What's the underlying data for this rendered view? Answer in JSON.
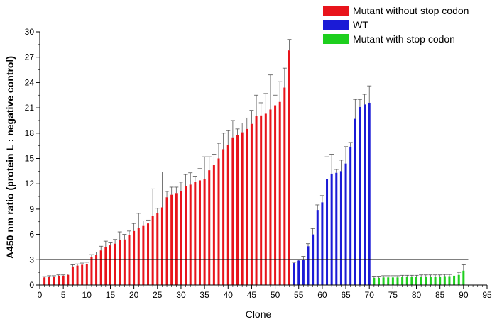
{
  "chart_data": {
    "type": "bar",
    "xlabel": "Clone",
    "ylabel": "A450 nm ratio (protein L : negative control)",
    "xlim": [
      0,
      95
    ],
    "ylim": [
      0,
      30
    ],
    "xticks": [
      0,
      5,
      10,
      15,
      20,
      25,
      30,
      35,
      40,
      45,
      50,
      55,
      60,
      65,
      70,
      75,
      80,
      85,
      90,
      95
    ],
    "yticks": [
      0,
      3,
      6,
      9,
      12,
      15,
      18,
      21,
      24,
      27,
      30
    ],
    "threshold": 3,
    "grid": false,
    "legend_position": "top-right",
    "series": [
      {
        "name": "Mutant without stop codon",
        "color": "#e8141b",
        "x": [
          1,
          2,
          3,
          4,
          5,
          6,
          7,
          8,
          9,
          10,
          11,
          12,
          13,
          14,
          15,
          16,
          17,
          18,
          19,
          20,
          21,
          22,
          23,
          24,
          25,
          26,
          27,
          28,
          29,
          30,
          31,
          32,
          33,
          34,
          35,
          36,
          37,
          38,
          39,
          40,
          41,
          42,
          43,
          44,
          45,
          46,
          47,
          48,
          49,
          50,
          51,
          52,
          53
        ],
        "values": [
          0.9,
          1.0,
          1.0,
          1.1,
          1.1,
          1.2,
          2.2,
          2.3,
          2.4,
          2.5,
          3.3,
          3.6,
          4.1,
          4.5,
          4.7,
          4.9,
          5.3,
          5.4,
          5.9,
          6.4,
          6.8,
          7.0,
          7.3,
          8.2,
          8.5,
          9.2,
          10.4,
          10.7,
          10.9,
          11.1,
          11.7,
          11.9,
          12.2,
          12.4,
          12.6,
          13.6,
          14.2,
          15.0,
          16.1,
          16.6,
          17.5,
          17.8,
          18.1,
          18.5,
          19.1,
          20.0,
          20.1,
          20.3,
          20.8,
          21.3,
          21.7,
          23.4,
          27.8
        ],
        "errors": [
          0.1,
          0.1,
          0.1,
          0.1,
          0.1,
          0.1,
          0.2,
          0.2,
          0.2,
          0.2,
          0.3,
          0.3,
          0.5,
          0.7,
          0.3,
          0.5,
          1.0,
          0.6,
          0.5,
          0.9,
          1.7,
          0.6,
          0.4,
          3.2,
          0.6,
          4.2,
          0.7,
          0.9,
          0.7,
          1.1,
          1.4,
          1.4,
          0.7,
          1.4,
          2.6,
          1.6,
          1.3,
          1.8,
          1.9,
          1.7,
          2.0,
          0.7,
          1.1,
          1.3,
          1.6,
          2.5,
          1.5,
          2.4,
          4.1,
          1.2,
          2.4,
          2.3,
          1.3
        ]
      },
      {
        "name": "WT",
        "color": "#1b1bd6",
        "x": [
          54,
          55,
          56,
          57,
          58,
          59,
          60,
          61,
          62,
          63,
          64,
          65,
          66,
          67,
          68,
          69,
          70
        ],
        "values": [
          2.6,
          2.9,
          3.0,
          4.6,
          6.0,
          8.9,
          9.8,
          12.6,
          13.2,
          13.3,
          13.5,
          14.4,
          16.4,
          19.7,
          21.1,
          21.4,
          21.6
        ],
        "errors": [
          0.1,
          0.1,
          0.4,
          0.3,
          0.7,
          0.6,
          0.8,
          2.6,
          2.3,
          0.4,
          1.3,
          2.0,
          0.5,
          2.3,
          0.9,
          1.2,
          2.0
        ]
      },
      {
        "name": "Mutant with stop codon",
        "color": "#1ecf1e",
        "x": [
          71,
          72,
          73,
          74,
          75,
          76,
          77,
          78,
          79,
          80,
          81,
          82,
          83,
          84,
          85,
          86,
          87,
          88,
          89,
          90
        ],
        "values": [
          0.85,
          0.85,
          0.9,
          0.9,
          0.9,
          0.9,
          0.95,
          0.95,
          0.95,
          0.95,
          1.0,
          1.0,
          1.0,
          1.0,
          1.0,
          1.05,
          1.05,
          1.1,
          1.2,
          1.7
        ],
        "errors": [
          0.2,
          0.2,
          0.2,
          0.2,
          0.2,
          0.2,
          0.2,
          0.2,
          0.2,
          0.2,
          0.2,
          0.2,
          0.2,
          0.2,
          0.2,
          0.2,
          0.2,
          0.2,
          0.3,
          0.7
        ]
      }
    ]
  }
}
